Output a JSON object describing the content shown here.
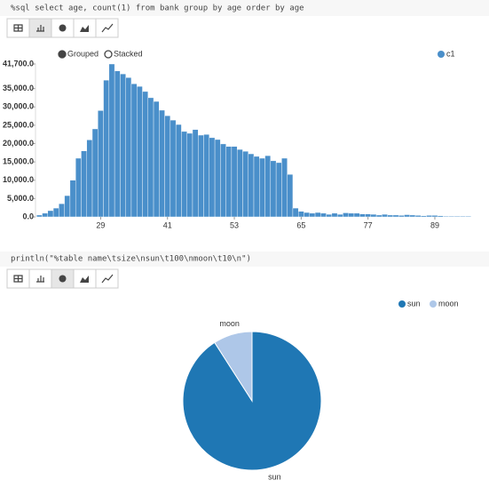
{
  "paragraphs": [
    {
      "code": "%sql select age, count(1) from bank group by age order by age"
    },
    {
      "code": "println(\"%table name\\tsize\\nsun\\t100\\nmoon\\t10\\n\")"
    }
  ],
  "chart_data": [
    {
      "type": "bar",
      "controls": [
        "Grouped",
        "Stacked"
      ],
      "x": [
        18,
        19,
        20,
        21,
        22,
        23,
        24,
        25,
        26,
        27,
        28,
        29,
        30,
        31,
        32,
        33,
        34,
        35,
        36,
        37,
        38,
        39,
        40,
        41,
        42,
        43,
        44,
        45,
        46,
        47,
        48,
        49,
        50,
        51,
        52,
        53,
        54,
        55,
        56,
        57,
        58,
        59,
        60,
        61,
        62,
        63,
        64,
        65,
        66,
        67,
        68,
        69,
        70,
        71,
        72,
        73,
        74,
        75,
        76,
        77,
        78,
        79,
        80,
        81,
        82,
        83,
        84,
        85,
        86,
        87,
        88,
        89,
        90,
        91,
        92,
        93,
        94,
        95
      ],
      "series": [
        {
          "name": "c1",
          "color": "#4a8fca",
          "values": [
            500,
            1000,
            1700,
            2400,
            3600,
            5800,
            10000,
            16000,
            18000,
            21000,
            24000,
            29000,
            37300,
            41700,
            39800,
            39000,
            38000,
            36300,
            35600,
            34200,
            32500,
            31500,
            29100,
            27600,
            26400,
            25200,
            23300,
            22800,
            23800,
            22300,
            22500,
            21600,
            21100,
            19900,
            19200,
            19200,
            18400,
            17900,
            17200,
            16500,
            16000,
            16700,
            15300,
            14800,
            16000,
            11600,
            2400,
            1500,
            1200,
            1000,
            1200,
            1000,
            700,
            1000,
            700,
            1100,
            1000,
            1000,
            800,
            800,
            700,
            500,
            700,
            500,
            500,
            400,
            600,
            500,
            400,
            300,
            400,
            400,
            300,
            200,
            200,
            200,
            200,
            200
          ]
        }
      ],
      "xlim": [
        17.3,
        94.9
      ],
      "xticks": [
        29,
        41,
        53,
        65,
        77,
        89
      ],
      "ylim": [
        0,
        41700
      ],
      "yticks": [
        {
          "value": 0,
          "label": "0.0"
        },
        {
          "value": 5000,
          "label": "5,000.0"
        },
        {
          "value": 10000,
          "label": "10,000.0"
        },
        {
          "value": 15000,
          "label": "15,000.0"
        },
        {
          "value": 20000,
          "label": "20,000.0"
        },
        {
          "value": 25000,
          "label": "25,000.0"
        },
        {
          "value": 30000,
          "label": "30,000.0"
        },
        {
          "value": 35000,
          "label": "35,000.0"
        },
        {
          "value": 41700,
          "label": "41,700.0"
        }
      ],
      "grid": false,
      "legend": "top-right"
    },
    {
      "type": "pie",
      "categories": [
        "sun",
        "moon"
      ],
      "values": [
        100,
        10
      ],
      "colors": [
        "#1f77b4",
        "#aec7e8"
      ],
      "legend": "top-right"
    }
  ]
}
